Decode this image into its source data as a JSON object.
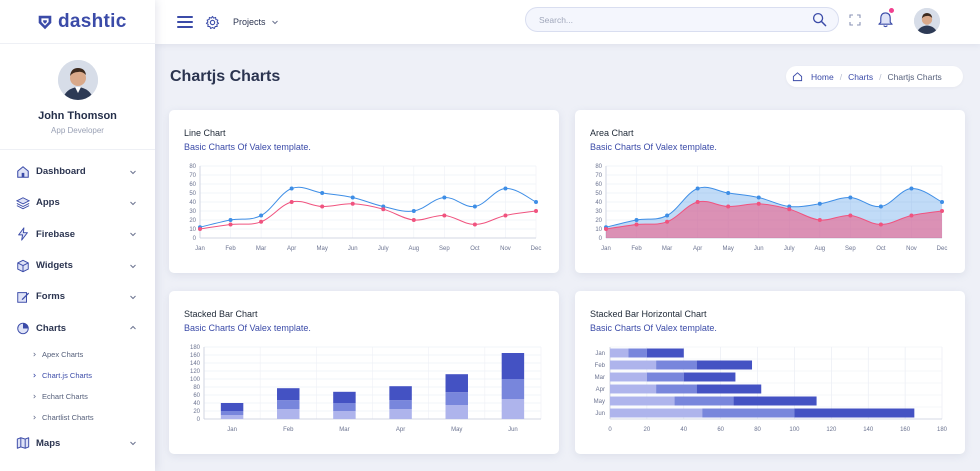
{
  "brand": {
    "name": "dashtic"
  },
  "profile": {
    "name": "John Thomson",
    "role": "App Developer"
  },
  "sidebar": {
    "items": [
      {
        "label": "Dashboard",
        "icon": "home-icon"
      },
      {
        "label": "Apps",
        "icon": "layers-icon"
      },
      {
        "label": "Firebase",
        "icon": "lightning-icon"
      },
      {
        "label": "Widgets",
        "icon": "cube-icon"
      },
      {
        "label": "Forms",
        "icon": "edit-icon"
      },
      {
        "label": "Charts",
        "icon": "pie-chart-icon"
      },
      {
        "label": "Maps",
        "icon": "map-icon"
      }
    ],
    "charts_sub": [
      {
        "label": "Apex Charts"
      },
      {
        "label": "Chart.js Charts"
      },
      {
        "label": "Echart Charts"
      },
      {
        "label": "Chartlist Charts"
      }
    ]
  },
  "header": {
    "projects_label": "Projects",
    "search_placeholder": "Search...",
    "notification_badge_color": "#f1408f"
  },
  "page": {
    "title": "Chartjs Charts"
  },
  "breadcrumb": {
    "home": "Home",
    "section": "Charts",
    "current": "Chartjs Charts"
  },
  "cards": {
    "line": {
      "title": "Line Chart",
      "subtitle": "Basic Charts Of Valex template."
    },
    "area": {
      "title": "Area Chart",
      "subtitle": "Basic Charts Of Valex template."
    },
    "stacked": {
      "title": "Stacked Bar Chart",
      "subtitle": "Basic Charts Of Valex template."
    },
    "hstacked": {
      "title": "Stacked Bar Horizontal Chart",
      "subtitle": "Basic Charts Of Valex template."
    }
  },
  "colors": {
    "accent": "#3b4ba8",
    "blue_series": "#3e8ee6",
    "pink_series": "#f0537f"
  },
  "chart_data": [
    {
      "type": "line",
      "categories": [
        "Jan",
        "Feb",
        "Mar",
        "Apr",
        "May",
        "Jun",
        "July",
        "Aug",
        "Sep",
        "Oct",
        "Nov",
        "Dec"
      ],
      "ylim": [
        0,
        80
      ],
      "yticks": [
        0,
        10,
        20,
        30,
        40,
        50,
        60,
        70,
        80
      ],
      "series": [
        {
          "values": [
            12,
            20,
            25,
            55,
            50,
            45,
            35,
            30,
            45,
            35,
            55,
            40
          ],
          "color": "#3e8ee6"
        },
        {
          "values": [
            10,
            15,
            18,
            40,
            35,
            38,
            32,
            20,
            25,
            15,
            25,
            30
          ],
          "color": "#f0537f"
        }
      ]
    },
    {
      "type": "area",
      "categories": [
        "Jan",
        "Feb",
        "Mar",
        "Apr",
        "May",
        "Jun",
        "July",
        "Aug",
        "Sep",
        "Oct",
        "Nov",
        "Dec"
      ],
      "ylim": [
        0,
        80
      ],
      "yticks": [
        0,
        10,
        20,
        30,
        40,
        50,
        60,
        70,
        80
      ],
      "series": [
        {
          "values": [
            12,
            20,
            25,
            55,
            50,
            45,
            35,
            38,
            45,
            35,
            55,
            40
          ],
          "color": "#3e8ee6"
        },
        {
          "values": [
            10,
            15,
            18,
            40,
            35,
            38,
            32,
            20,
            25,
            15,
            25,
            30
          ],
          "color": "#f0537f"
        }
      ]
    },
    {
      "type": "bar",
      "stacked": true,
      "categories": [
        "Jan",
        "Feb",
        "Mar",
        "Apr",
        "May",
        "Jun"
      ],
      "ylim": [
        0,
        180
      ],
      "yticks": [
        0,
        20,
        40,
        60,
        80,
        100,
        120,
        140,
        160,
        180
      ],
      "series": [
        {
          "values": [
            10,
            25,
            20,
            25,
            35,
            50
          ],
          "color": "#aeb4ec"
        },
        {
          "values": [
            10,
            22,
            20,
            22,
            32,
            50
          ],
          "color": "#7886dc"
        },
        {
          "values": [
            20,
            30,
            28,
            35,
            45,
            65
          ],
          "color": "#4452c3"
        }
      ]
    },
    {
      "type": "bar",
      "orientation": "horizontal",
      "stacked": true,
      "categories": [
        "Jan",
        "Feb",
        "Mar",
        "Apr",
        "May",
        "Jun"
      ],
      "xlim": [
        0,
        180
      ],
      "xticks": [
        0,
        20,
        40,
        60,
        80,
        100,
        120,
        140,
        160,
        180
      ],
      "series": [
        {
          "values": [
            10,
            25,
            20,
            25,
            35,
            50
          ],
          "color": "#aeb4ec"
        },
        {
          "values": [
            10,
            22,
            20,
            22,
            32,
            50
          ],
          "color": "#7886dc"
        },
        {
          "values": [
            20,
            30,
            28,
            35,
            45,
            65
          ],
          "color": "#4452c3"
        }
      ]
    }
  ]
}
